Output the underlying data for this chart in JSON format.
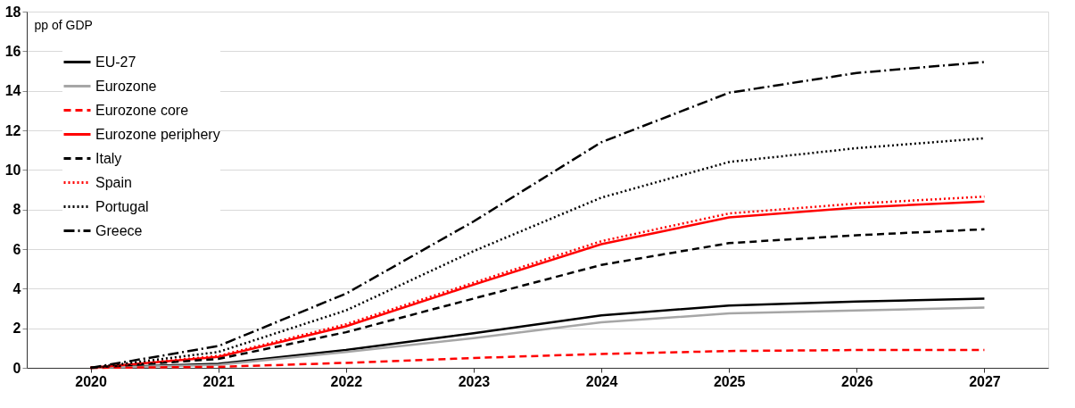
{
  "chart_data": {
    "type": "line",
    "ylabel": "pp of GDP",
    "categories": [
      "2020",
      "2021",
      "2022",
      "2023",
      "2024",
      "2025",
      "2026",
      "2027"
    ],
    "series": [
      {
        "name": "EU-27",
        "color": "#000000",
        "line_style": "solid",
        "values": [
          0,
          0.2,
          0.9,
          1.75,
          2.65,
          3.15,
          3.35,
          3.5
        ]
      },
      {
        "name": "Eurozone",
        "color": "#a6a6a6",
        "line_style": "solid",
        "values": [
          0,
          0.15,
          0.8,
          1.5,
          2.3,
          2.75,
          2.9,
          3.05
        ]
      },
      {
        "name": "Eurozone core",
        "color": "#ff0000",
        "line_style": "dashed",
        "values": [
          0,
          0.05,
          0.25,
          0.5,
          0.7,
          0.85,
          0.9,
          0.9
        ]
      },
      {
        "name": "Eurozone periphery",
        "color": "#ff0000",
        "line_style": "solid",
        "values": [
          0,
          0.55,
          2.1,
          4.2,
          6.25,
          7.6,
          8.1,
          8.4
        ]
      },
      {
        "name": "Italy",
        "color": "#000000",
        "line_style": "dashed",
        "values": [
          0,
          0.45,
          1.8,
          3.5,
          5.2,
          6.3,
          6.7,
          7.0
        ]
      },
      {
        "name": "Spain",
        "color": "#ff0000",
        "line_style": "dotted",
        "values": [
          0,
          0.6,
          2.2,
          4.3,
          6.4,
          7.8,
          8.3,
          8.65
        ]
      },
      {
        "name": "Portugal",
        "color": "#000000",
        "line_style": "dotted",
        "values": [
          0,
          0.8,
          2.9,
          5.9,
          8.6,
          10.4,
          11.1,
          11.6
        ]
      },
      {
        "name": "Greece",
        "color": "#000000",
        "line_style": "dashdot",
        "values": [
          0,
          1.1,
          3.75,
          7.4,
          11.4,
          13.9,
          14.9,
          15.45
        ]
      }
    ],
    "ylim": [
      0,
      18
    ],
    "yticks": [
      0,
      2,
      4,
      6,
      8,
      10,
      12,
      14,
      16,
      18
    ],
    "grid": "y",
    "legend": "top left",
    "marker": "none"
  }
}
